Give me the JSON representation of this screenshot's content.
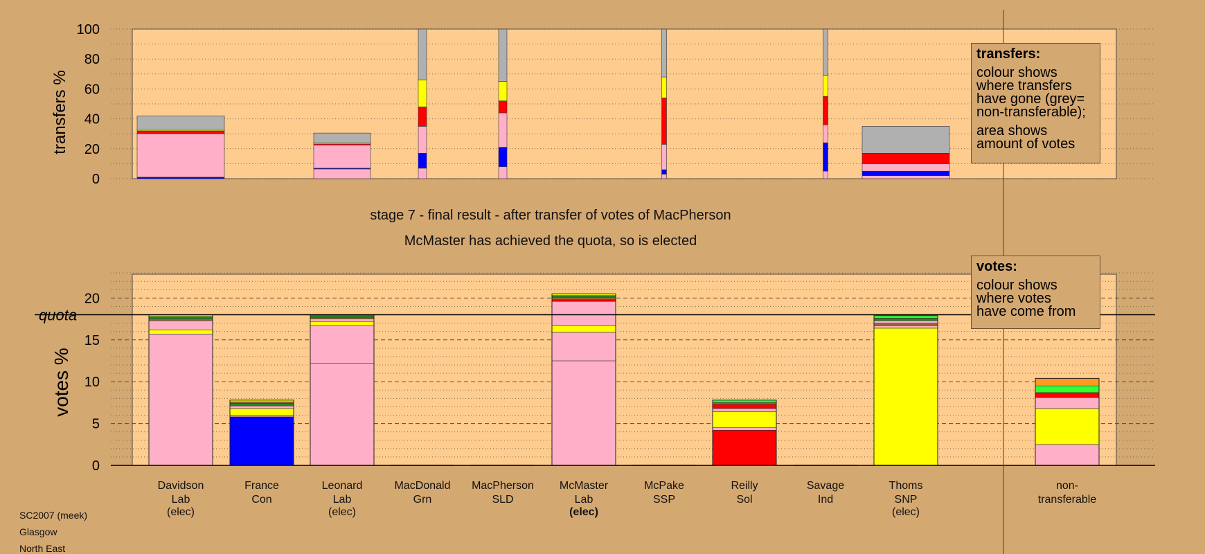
{
  "chart_data": {
    "title": "stage 7 - final result - after transfer of votes of MacPherson",
    "subtitle": "McMaster has achieved the quota, so is elected",
    "quota_label": "quota",
    "quota_value": 18.0,
    "colors": {
      "pink": "#ffb0c8",
      "yellow": "#ffff00",
      "red": "#ff0000",
      "blue": "#0000ff",
      "grey": "#b0b0b0",
      "green": "#33ff33",
      "orange": "#ff9922",
      "darkgreen": "#228822",
      "brown": "#996633"
    },
    "transfers_chart": {
      "type": "bar",
      "ylabel": "transfers %",
      "ylim": [
        0,
        100
      ],
      "yticks": [
        0,
        20,
        40,
        60,
        80,
        100
      ],
      "bars": [
        {
          "candidate_index": 0,
          "width": "wide",
          "segments": [
            {
              "color": "blue",
              "value": 1
            },
            {
              "color": "pink",
              "value": 29
            },
            {
              "color": "red",
              "value": 2
            },
            {
              "color": "yellow",
              "value": 1
            },
            {
              "color": "grey",
              "value": 9
            }
          ]
        },
        {
          "candidate_index": 2,
          "width": "medium",
          "segments": [
            {
              "color": "pink",
              "value": 6.5
            },
            {
              "color": "blue",
              "value": 0.5
            },
            {
              "color": "pink",
              "value": 15.5
            },
            {
              "color": "red",
              "value": 0.7
            },
            {
              "color": "yellow",
              "value": 0.8
            },
            {
              "color": "grey",
              "value": 6.5
            }
          ]
        },
        {
          "candidate_index": 3,
          "width": "narrow",
          "segments": [
            {
              "color": "pink",
              "value": 7
            },
            {
              "color": "blue",
              "value": 10
            },
            {
              "color": "pink",
              "value": 18
            },
            {
              "color": "red",
              "value": 13
            },
            {
              "color": "yellow",
              "value": 18
            },
            {
              "color": "grey",
              "value": 34
            }
          ]
        },
        {
          "candidate_index": 4,
          "width": "narrow",
          "segments": [
            {
              "color": "pink",
              "value": 8
            },
            {
              "color": "blue",
              "value": 13
            },
            {
              "color": "pink",
              "value": 23
            },
            {
              "color": "red",
              "value": 8
            },
            {
              "color": "yellow",
              "value": 13
            },
            {
              "color": "grey",
              "value": 35
            }
          ]
        },
        {
          "candidate_index": 6,
          "width": "thin",
          "segments": [
            {
              "color": "pink",
              "value": 3
            },
            {
              "color": "blue",
              "value": 3
            },
            {
              "color": "pink",
              "value": 17
            },
            {
              "color": "red",
              "value": 31
            },
            {
              "color": "yellow",
              "value": 14
            },
            {
              "color": "grey",
              "value": 32
            }
          ]
        },
        {
          "candidate_index": 8,
          "width": "thin",
          "segments": [
            {
              "color": "pink",
              "value": 5
            },
            {
              "color": "blue",
              "value": 19
            },
            {
              "color": "pink",
              "value": 12
            },
            {
              "color": "red",
              "value": 19
            },
            {
              "color": "yellow",
              "value": 14
            },
            {
              "color": "grey",
              "value": 31
            }
          ]
        },
        {
          "candidate_index": 9,
          "width": "wide",
          "segments": [
            {
              "color": "pink",
              "value": 2
            },
            {
              "color": "blue",
              "value": 3
            },
            {
              "color": "pink",
              "value": 5
            },
            {
              "color": "red",
              "value": 7
            },
            {
              "color": "grey",
              "value": 18
            }
          ]
        }
      ]
    },
    "votes_chart": {
      "type": "bar",
      "ylabel": "votes %",
      "ylim": [
        0,
        23
      ],
      "yticks": [
        0,
        5,
        10,
        15,
        20
      ],
      "bars": [
        {
          "candidate_index": 0,
          "segments": [
            {
              "color": "pink",
              "value": 15.7
            },
            {
              "color": "yellow",
              "value": 0.5
            },
            {
              "color": "pink",
              "value": 1.1
            },
            {
              "color": "brown",
              "value": 0.2
            },
            {
              "color": "darkgreen",
              "value": 0.3
            },
            {
              "color": "yellow",
              "value": 0.2
            }
          ]
        },
        {
          "candidate_index": 1,
          "segments": [
            {
              "color": "blue",
              "value": 5.8
            },
            {
              "color": "pink",
              "value": 0.2
            },
            {
              "color": "yellow",
              "value": 0.8
            },
            {
              "color": "pink",
              "value": 0.3
            },
            {
              "color": "darkgreen",
              "value": 0.3
            },
            {
              "color": "brown",
              "value": 0.2
            },
            {
              "color": "yellow",
              "value": 0.2
            }
          ]
        },
        {
          "candidate_index": 2,
          "segments": [
            {
              "color": "pink",
              "value": 12.2
            },
            {
              "color": "pink",
              "value": 4.5
            },
            {
              "color": "yellow",
              "value": 0.5
            },
            {
              "color": "pink",
              "value": 0.3
            },
            {
              "color": "brown",
              "value": 0.2
            },
            {
              "color": "darkgreen",
              "value": 0.2
            },
            {
              "color": "yellow",
              "value": 0.1
            }
          ]
        },
        {
          "candidate_index": 3,
          "segments": [
            {
              "color": "pink",
              "value": 0.05
            }
          ]
        },
        {
          "candidate_index": 4,
          "segments": [
            {
              "color": "pink",
              "value": 0.05
            }
          ]
        },
        {
          "candidate_index": 5,
          "segments": [
            {
              "color": "pink",
              "value": 12.5
            },
            {
              "color": "pink",
              "value": 3.4
            },
            {
              "color": "yellow",
              "value": 0.8
            },
            {
              "color": "pink",
              "value": 2.9
            },
            {
              "color": "red",
              "value": 0.2
            },
            {
              "color": "brown",
              "value": 0.3
            },
            {
              "color": "darkgreen",
              "value": 0.2
            },
            {
              "color": "yellow",
              "value": 0.2
            }
          ]
        },
        {
          "candidate_index": 6,
          "segments": [
            {
              "color": "pink",
              "value": 0.05
            }
          ]
        },
        {
          "candidate_index": 7,
          "segments": [
            {
              "color": "red",
              "value": 4.2
            },
            {
              "color": "pink",
              "value": 0.3
            },
            {
              "color": "yellow",
              "value": 1.9
            },
            {
              "color": "pink",
              "value": 0.4
            },
            {
              "color": "red",
              "value": 0.5
            },
            {
              "color": "brown",
              "value": 0.2
            },
            {
              "color": "green",
              "value": 0.3
            }
          ]
        },
        {
          "candidate_index": 8,
          "segments": [
            {
              "color": "pink",
              "value": 0.05
            }
          ]
        },
        {
          "candidate_index": 9,
          "segments": [
            {
              "color": "yellow",
              "value": 16.4
            },
            {
              "color": "pink",
              "value": 0.3
            },
            {
              "color": "brown",
              "value": 0.3
            },
            {
              "color": "pink",
              "value": 0.3
            },
            {
              "color": "darkgreen",
              "value": 0.3
            },
            {
              "color": "green",
              "value": 0.3
            }
          ]
        },
        {
          "candidate_index": 10,
          "segments": [
            {
              "color": "pink",
              "value": 2.5
            },
            {
              "color": "yellow",
              "value": 4.3
            },
            {
              "color": "pink",
              "value": 1.3
            },
            {
              "color": "red",
              "value": 0.6
            },
            {
              "color": "green",
              "value": 0.8
            },
            {
              "color": "orange",
              "value": 0.9
            }
          ]
        }
      ]
    },
    "candidates": [
      {
        "name": "Davidson",
        "party": "Lab",
        "status": "(elec)",
        "bold_status": false
      },
      {
        "name": "France",
        "party": "Con",
        "status": "",
        "bold_status": false
      },
      {
        "name": "Leonard",
        "party": "Lab",
        "status": "(elec)",
        "bold_status": false
      },
      {
        "name": "MacDonald",
        "party": "Grn",
        "status": "",
        "bold_status": false
      },
      {
        "name": "MacPherson",
        "party": "SLD",
        "status": "",
        "bold_status": false
      },
      {
        "name": "McMaster",
        "party": "Lab",
        "status": "(elec)",
        "bold_status": true
      },
      {
        "name": "McPake",
        "party": "SSP",
        "status": "",
        "bold_status": false
      },
      {
        "name": "Reilly",
        "party": "Sol",
        "status": "",
        "bold_status": false
      },
      {
        "name": "Savage",
        "party": "Ind",
        "status": "",
        "bold_status": false
      },
      {
        "name": "Thoms",
        "party": "SNP",
        "status": "(elec)",
        "bold_status": false
      },
      {
        "name": "non-",
        "party": "transferable",
        "status": "",
        "bold_status": false
      }
    ],
    "legend_transfers": {
      "heading": "transfers:",
      "para1": [
        "colour shows",
        "where transfers",
        "have gone (grey=",
        "non-transferable);"
      ],
      "para2": [
        "area shows",
        "amount of votes"
      ]
    },
    "legend_votes": {
      "heading": "votes:",
      "para1": [
        "colour shows",
        "where votes",
        "have come from"
      ]
    }
  },
  "footer": {
    "line1": "SC2007 (meek)",
    "line2": "Glasgow",
    "line3": "North East"
  }
}
